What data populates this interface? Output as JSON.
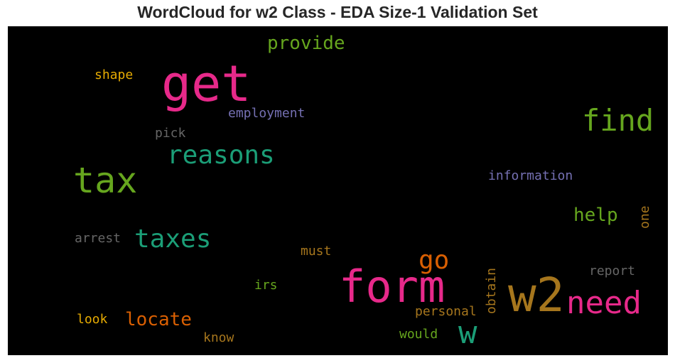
{
  "chart_data": {
    "type": "wordcloud",
    "title": "WordCloud for w2 Class - EDA Size-1 Validation Set",
    "background": "#000000",
    "words": [
      {
        "text": "get",
        "color": "#e7298a"
      },
      {
        "text": "form",
        "color": "#e7298a"
      },
      {
        "text": "w2",
        "color": "#a6761d"
      },
      {
        "text": "need",
        "color": "#e7298a"
      },
      {
        "text": "tax",
        "color": "#66a61e"
      },
      {
        "text": "find",
        "color": "#66a61e"
      },
      {
        "text": "w",
        "color": "#1b9e77"
      },
      {
        "text": "reasons",
        "color": "#1b9e77"
      },
      {
        "text": "taxes",
        "color": "#1b9e77"
      },
      {
        "text": "go",
        "color": "#d95f02"
      },
      {
        "text": "locate",
        "color": "#d95f02"
      },
      {
        "text": "provide",
        "color": "#66a61e"
      },
      {
        "text": "help",
        "color": "#66a61e"
      },
      {
        "text": "information",
        "color": "#7570b3"
      },
      {
        "text": "employment",
        "color": "#7570b3"
      },
      {
        "text": "shape",
        "color": "#e6ab02"
      },
      {
        "text": "pick",
        "color": "#666666"
      },
      {
        "text": "arrest",
        "color": "#666666"
      },
      {
        "text": "must",
        "color": "#a6761d"
      },
      {
        "text": "obtain",
        "color": "#a6761d"
      },
      {
        "text": "one",
        "color": "#a6761d"
      },
      {
        "text": "report",
        "color": "#666666"
      },
      {
        "text": "personal",
        "color": "#a6761d"
      },
      {
        "text": "irs",
        "color": "#66a61e"
      },
      {
        "text": "look",
        "color": "#e6ab02"
      },
      {
        "text": "know",
        "color": "#a6761d"
      },
      {
        "text": "would",
        "color": "#66a61e"
      }
    ]
  }
}
